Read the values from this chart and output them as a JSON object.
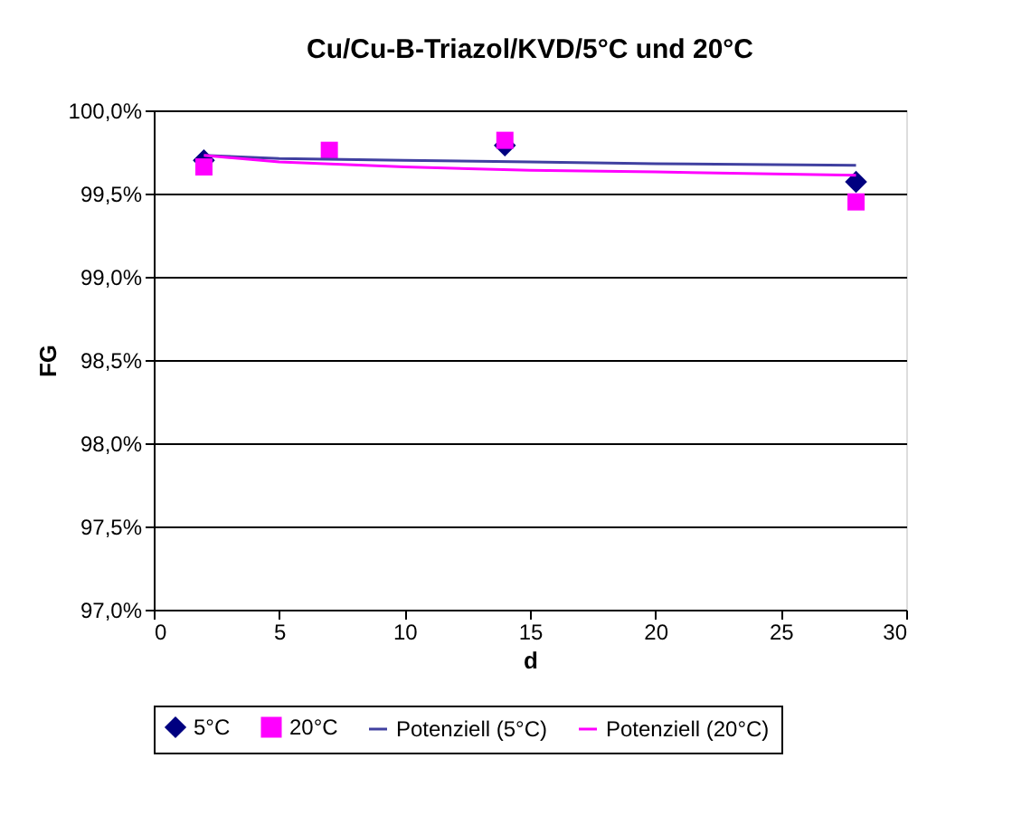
{
  "chart_data": {
    "type": "scatter",
    "title": "Cu/Cu-B-Triazol/KVD/5°C und 20°C",
    "xlabel": "d",
    "ylabel": "FG",
    "xlim": [
      0,
      30
    ],
    "xticks": [
      0,
      5,
      10,
      15,
      20,
      25,
      30
    ],
    "ylim": [
      97.0,
      100.0
    ],
    "yticks": [
      {
        "value": 97.0,
        "label": "97,0%"
      },
      {
        "value": 97.5,
        "label": "97,5%"
      },
      {
        "value": 98.0,
        "label": "98,0%"
      },
      {
        "value": 98.5,
        "label": "98,5%"
      },
      {
        "value": 99.0,
        "label": "99,0%"
      },
      {
        "value": 99.5,
        "label": "99,5%"
      },
      {
        "value": 100.0,
        "label": "100,0%"
      }
    ],
    "grid": "y",
    "legend": "bottom",
    "series": [
      {
        "name": "5°C",
        "marker": "diamond",
        "color": "#000080",
        "x": [
          2,
          7,
          14,
          28
        ],
        "values": [
          99.7,
          null,
          99.79,
          99.57
        ]
      },
      {
        "name": "20°C",
        "marker": "square",
        "color": "#ff00ff",
        "x": [
          2,
          7,
          14,
          28
        ],
        "values": [
          99.66,
          99.76,
          99.82,
          99.45
        ]
      },
      {
        "name": "Potenziell (5°C)",
        "type": "line",
        "marker": "none",
        "line_style": "solid",
        "color": "#4040a0",
        "x": [
          2,
          5,
          10,
          15,
          20,
          28
        ],
        "values": [
          99.73,
          99.71,
          99.7,
          99.69,
          99.68,
          99.67
        ]
      },
      {
        "name": "Potenziell (20°C)",
        "type": "line",
        "marker": "none",
        "line_style": "solid",
        "color": "#ff00ff",
        "x": [
          2,
          5,
          10,
          15,
          20,
          28
        ],
        "values": [
          99.73,
          99.69,
          99.66,
          99.64,
          99.63,
          99.61
        ]
      }
    ]
  }
}
